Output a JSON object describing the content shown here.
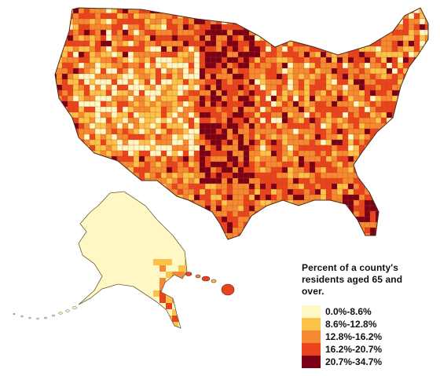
{
  "legend": {
    "title": "Percent of a county's residents aged 65 and over.",
    "classes": [
      {
        "label": "0.0%-8.6%",
        "color": "#fff8c4"
      },
      {
        "label": "8.6%-12.8%",
        "color": "#fcc34a"
      },
      {
        "label": "12.8%-16.2%",
        "color": "#f68a32"
      },
      {
        "label": "16.2%-20.7%",
        "color": "#e9441e"
      },
      {
        "label": "20.7%-34.7%",
        "color": "#7a0018"
      }
    ]
  },
  "map": {
    "regions": [
      "contiguous-us",
      "alaska",
      "hawaii"
    ],
    "outline_color": "#4a2a1a"
  }
}
